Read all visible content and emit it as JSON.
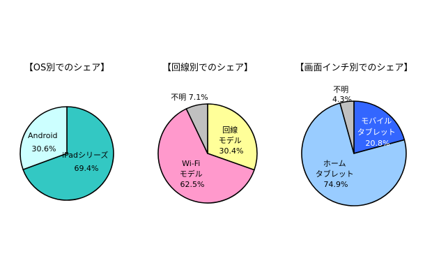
{
  "chart_data": [
    {
      "type": "pie",
      "title": "【OS別でのシェア】",
      "slices": [
        {
          "lines": [
            "iPadシリーズ",
            "69.4%"
          ],
          "value": 69.4,
          "color": "#33c8c3",
          "text_color": "#000000"
        },
        {
          "lines": [
            "Android",
            "30.6%"
          ],
          "value": 30.6,
          "color": "#ccffff",
          "text_color": "#000000"
        }
      ]
    },
    {
      "type": "pie",
      "title": "【回線別でのシェア】",
      "slices": [
        {
          "lines": [
            "回線",
            "モデル",
            "30.4%"
          ],
          "value": 30.4,
          "color": "#ffff99",
          "text_color": "#000000"
        },
        {
          "lines": [
            "Wi-Fi",
            "モデル",
            "62.5%"
          ],
          "value": 62.5,
          "color": "#ff99cc",
          "text_color": "#000000"
        },
        {
          "lines": [
            "不明 7.1%"
          ],
          "value": 7.1,
          "color": "#c0c0c0",
          "text_color": "#000000"
        }
      ]
    },
    {
      "type": "pie",
      "title": "【画面インチ別でのシェア】",
      "slices": [
        {
          "lines": [
            "モバイル",
            "タブレット",
            "20.8%"
          ],
          "value": 20.8,
          "color": "#3366ff",
          "text_color": "#ffffff"
        },
        {
          "lines": [
            "ホーム",
            "タブレット",
            "74.9%"
          ],
          "value": 74.9,
          "color": "#99ccff",
          "text_color": "#000000"
        },
        {
          "lines": [
            "不明",
            "4.3%"
          ],
          "value": 4.3,
          "color": "#c0c0c0",
          "text_color": "#000000"
        }
      ]
    }
  ]
}
